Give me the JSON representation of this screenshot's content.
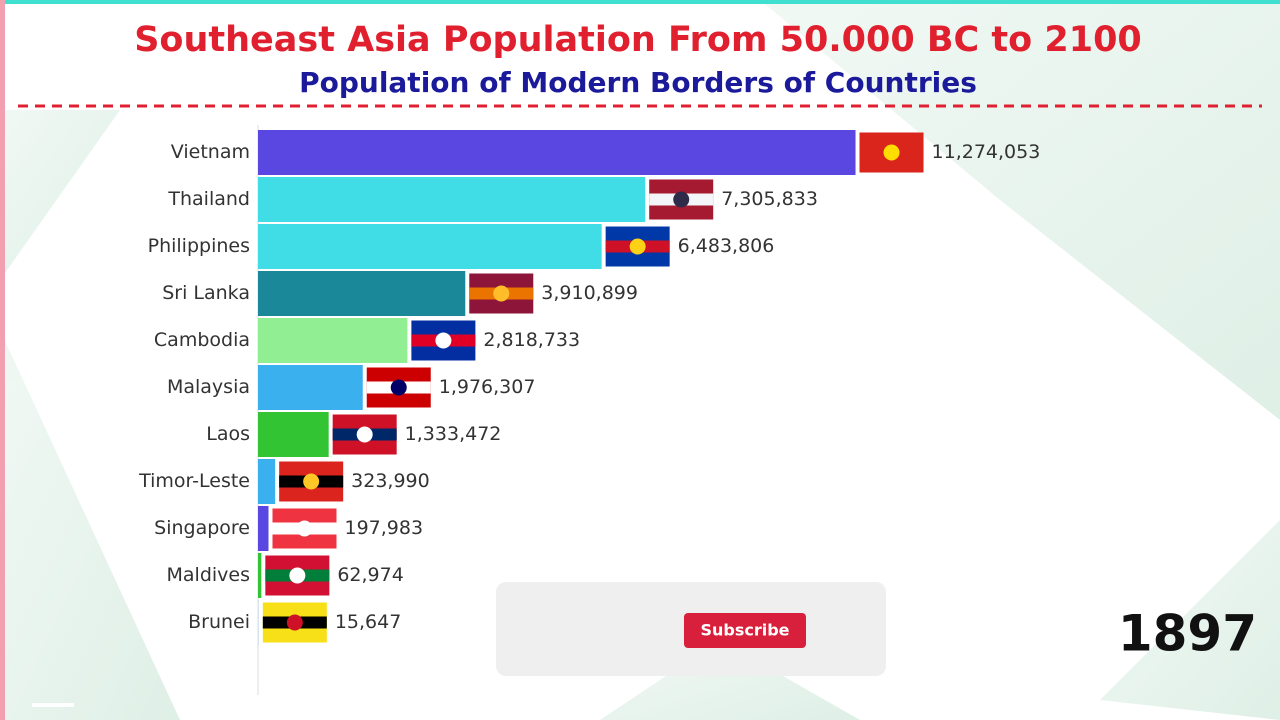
{
  "chart_data": {
    "type": "barh",
    "title": "Southeast Asia Population From 50.000 BC to 2100",
    "subtitle": "Population of Modern Borders of Countries",
    "annotation": "1897",
    "categories": [
      "Vietnam",
      "Thailand",
      "Philippines",
      "Sri Lanka",
      "Cambodia",
      "Malaysia",
      "Laos",
      "Timor-Leste",
      "Singapore",
      "Maldives",
      "Brunei"
    ],
    "values": [
      11274053,
      7305833,
      6483806,
      3910899,
      2818733,
      1976307,
      1333472,
      323990,
      197983,
      62974,
      15647
    ],
    "value_labels": [
      "11,274,053",
      "7,305,833",
      "6,483,806",
      "3,910,899",
      "2,818,733",
      "1,976,307",
      "1,333,472",
      "323,990",
      "197,983",
      "62,974",
      "15,647"
    ],
    "colors": [
      "#5a46e0",
      "#40dde6",
      "#40dde6",
      "#1a8898",
      "#92ee92",
      "#3bb0ee",
      "#33c433",
      "#3bb0ee",
      "#5a46e0",
      "#33c433",
      "#cfe0e8"
    ],
    "xlim": [
      0,
      12000000
    ]
  },
  "button": {
    "label": "Subscribe"
  }
}
